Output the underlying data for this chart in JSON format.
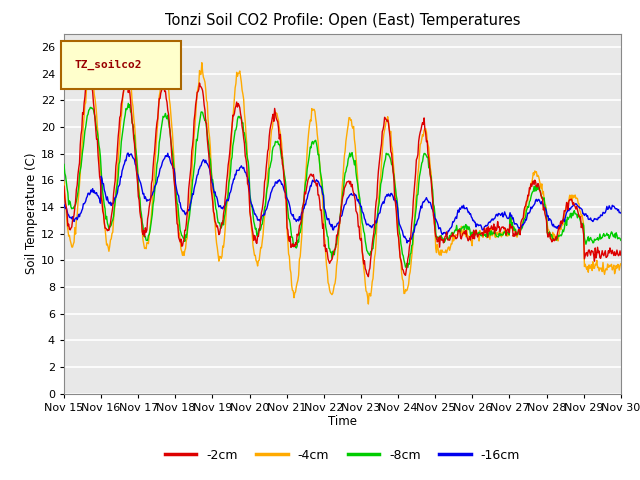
{
  "title": "Tonzi Soil CO2 Profile: Open (East) Temperatures",
  "xlabel": "Time",
  "ylabel": "Soil Temperature (C)",
  "legend_title": "TZ_soilco2",
  "ylim": [
    0,
    27
  ],
  "yticks": [
    0,
    2,
    4,
    6,
    8,
    10,
    12,
    14,
    16,
    18,
    20,
    22,
    24,
    26
  ],
  "colors": {
    "-2cm": "#dd0000",
    "-4cm": "#ffaa00",
    "-8cm": "#00cc00",
    "-16cm": "#0000ee"
  },
  "line_labels": [
    "-2cm",
    "-4cm",
    "-8cm",
    "-16cm"
  ],
  "fig_bg": "#ffffff",
  "plot_bg": "#e8e8e8",
  "x_start": 15.0,
  "x_end": 30.0,
  "x_ticks": [
    15,
    16,
    17,
    18,
    19,
    20,
    21,
    22,
    23,
    24,
    25,
    26,
    27,
    28,
    29,
    30
  ],
  "x_tick_labels": [
    "Nov 15",
    "Nov 16",
    "Nov 17",
    "Nov 18",
    "Nov 19",
    "Nov 20",
    "Nov 21",
    "Nov 22",
    "Nov 23",
    "Nov 24",
    "Nov 25",
    "Nov 26",
    "Nov 27",
    "Nov 28",
    "Nov 29",
    "Nov 30"
  ]
}
